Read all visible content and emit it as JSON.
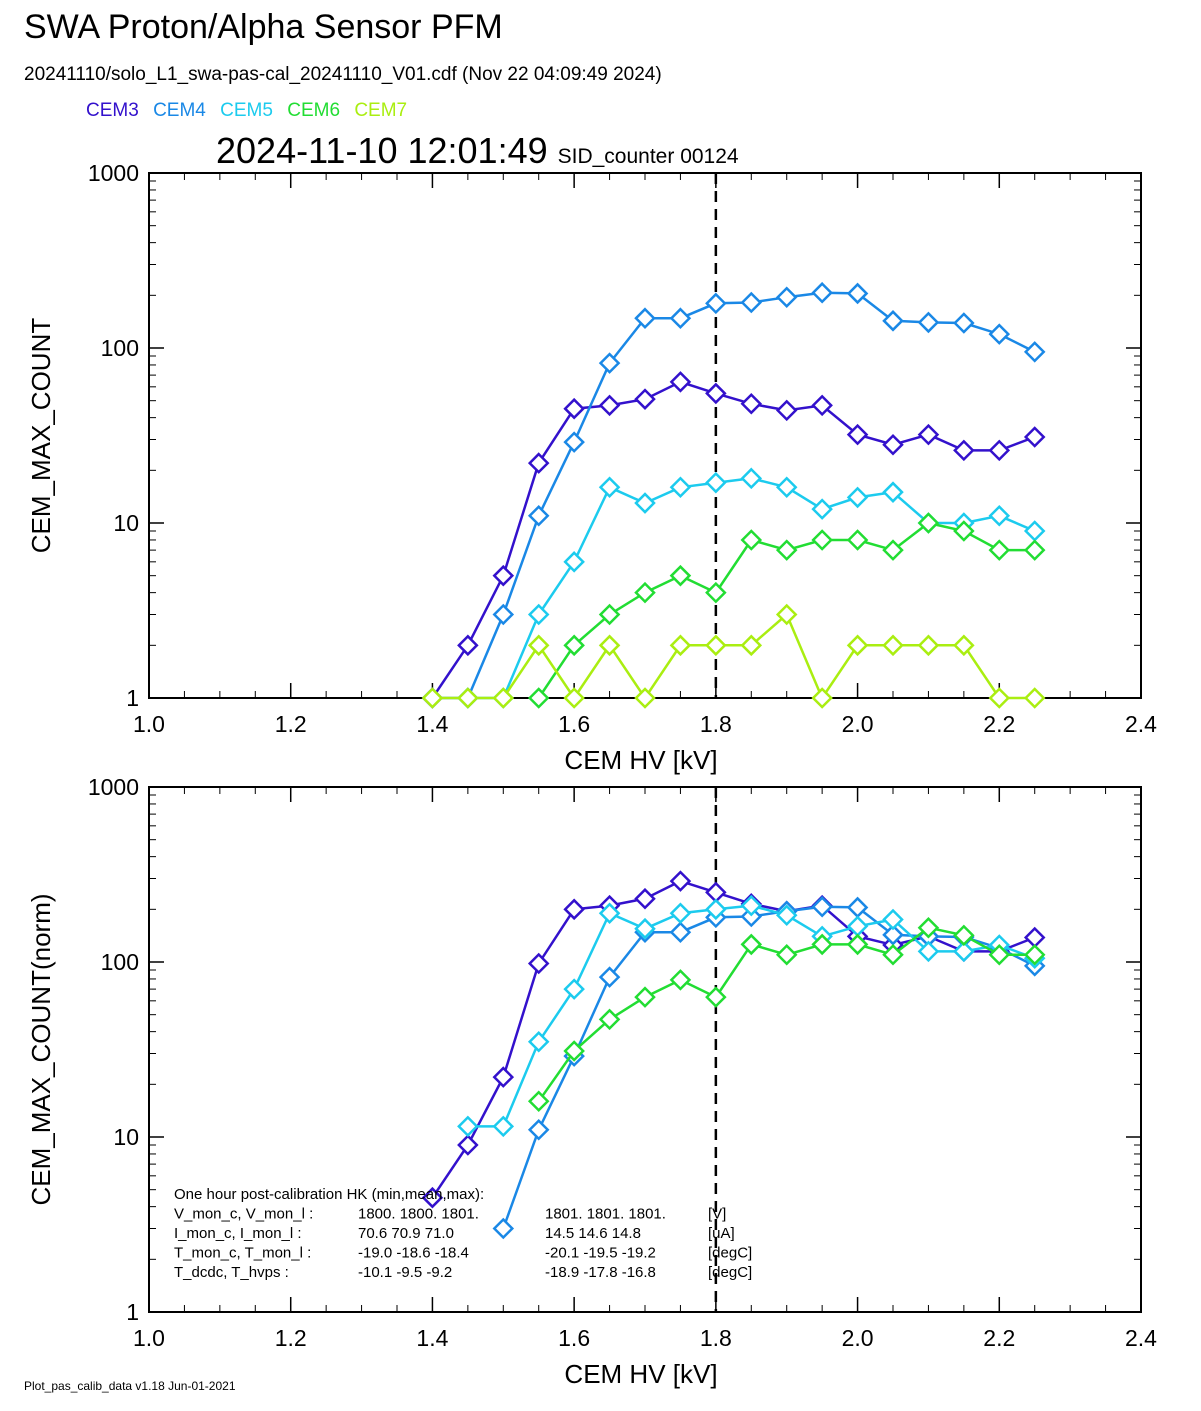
{
  "header": {
    "title": "SWA Proton/Alpha Sensor PFM",
    "file_line": "20241110/solo_L1_swa-pas-cal_20241110_V01.cdf  (Nov 22 04:09:49 2024)",
    "timestamp": "2024-11-10 12:01:49",
    "sid_label": "SID_counter 00124"
  },
  "legend": [
    {
      "name": "CEM3",
      "color": "#3311cc"
    },
    {
      "name": "CEM4",
      "color": "#1a88e6"
    },
    {
      "name": "CEM5",
      "color": "#1ccbee"
    },
    {
      "name": "CEM6",
      "color": "#22dd33"
    },
    {
      "name": "CEM7",
      "color": "#aaee11"
    }
  ],
  "hk_box": {
    "title": "One hour post-calibration HK (min,mean,max):",
    "rows": [
      {
        "label": "V_mon_c, V_mon_l :",
        "c": "1800.  1800.  1801.",
        "l": "1801.  1801.  1801.",
        "unit": "[V]"
      },
      {
        "label": "I_mon_c,  I_mon_l :",
        "c": "70.6   70.9   71.0",
        "l": "14.5   14.6   14.8",
        "unit": "[uA]"
      },
      {
        "label": "T_mon_c, T_mon_l :",
        "c": "-19.0  -18.6  -18.4",
        "l": "-20.1  -19.5  -19.2",
        "unit": "[degC]"
      },
      {
        "label": "T_dcdc,    T_hvps :",
        "c": "-10.1   -9.5   -9.2",
        "l": "-18.9  -17.8  -16.8",
        "unit": "[degC]"
      }
    ]
  },
  "footer": "Plot_pas_calib_data v1.18 Jun-01-2021",
  "chart_data": [
    {
      "type": "line",
      "xlabel": "CEM HV [kV]",
      "ylabel": "CEM_MAX_COUNT",
      "xlim": [
        1.0,
        2.4
      ],
      "ylim": [
        1,
        1000
      ],
      "yscale": "log",
      "xticks": [
        "1.0",
        "1.2",
        "1.4",
        "1.6",
        "1.8",
        "2.0",
        "2.2",
        "2.4"
      ],
      "yticks": [
        "1",
        "10",
        "100",
        "1000"
      ],
      "vline_x": 1.8,
      "series": [
        {
          "name": "CEM3",
          "color": "#3311cc",
          "x": [
            1.4,
            1.45,
            1.5,
            1.55,
            1.6,
            1.65,
            1.7,
            1.75,
            1.8,
            1.85,
            1.9,
            1.95,
            2.0,
            2.05,
            2.1,
            2.15,
            2.2,
            2.25
          ],
          "y": [
            1,
            2,
            5,
            22,
            45,
            47,
            51,
            64,
            55,
            48,
            44,
            47,
            32,
            28,
            32,
            26,
            26,
            31
          ]
        },
        {
          "name": "CEM4",
          "color": "#1a88e6",
          "x": [
            1.4,
            1.45,
            1.5,
            1.55,
            1.6,
            1.65,
            1.7,
            1.75,
            1.8,
            1.85,
            1.9,
            1.95,
            2.0,
            2.05,
            2.1,
            2.15,
            2.2,
            2.25
          ],
          "y": [
            1,
            1,
            3,
            11,
            29,
            82,
            148,
            148,
            180,
            182,
            195,
            207,
            205,
            143,
            140,
            139,
            120,
            95
          ]
        },
        {
          "name": "CEM5",
          "color": "#1ccbee",
          "x": [
            1.45,
            1.5,
            1.55,
            1.6,
            1.65,
            1.7,
            1.75,
            1.8,
            1.85,
            1.9,
            1.95,
            2.0,
            2.05,
            2.1,
            2.15,
            2.2,
            2.25
          ],
          "y": [
            1,
            1,
            3,
            6,
            16,
            13,
            16,
            17,
            18,
            16,
            12,
            14,
            15,
            10,
            10,
            11,
            9
          ]
        },
        {
          "name": "CEM6",
          "color": "#22dd33",
          "x": [
            1.55,
            1.6,
            1.65,
            1.7,
            1.75,
            1.8,
            1.85,
            1.9,
            1.95,
            2.0,
            2.05,
            2.1,
            2.15,
            2.2,
            2.25
          ],
          "y": [
            1,
            2,
            3,
            4,
            5,
            4,
            8,
            7,
            8,
            8,
            7,
            10,
            9,
            7,
            7
          ]
        },
        {
          "name": "CEM7",
          "color": "#aaee11",
          "x": [
            1.4,
            1.45,
            1.5,
            1.55,
            1.6,
            1.65,
            1.7,
            1.75,
            1.8,
            1.85,
            1.9,
            1.95,
            2.0,
            2.05,
            2.1,
            2.15,
            2.2,
            2.25
          ],
          "y": [
            1,
            1,
            1,
            2,
            1,
            2,
            1,
            2,
            2,
            2,
            3,
            1,
            2,
            2,
            2,
            2,
            1,
            1
          ]
        }
      ]
    },
    {
      "type": "line",
      "xlabel": "CEM HV [kV]",
      "ylabel": "CEM_MAX_COUNT(norm)",
      "xlim": [
        1.0,
        2.4
      ],
      "ylim": [
        1,
        1000
      ],
      "yscale": "log",
      "xticks": [
        "1.0",
        "1.2",
        "1.4",
        "1.6",
        "1.8",
        "2.0",
        "2.2",
        "2.4"
      ],
      "yticks": [
        "1",
        "10",
        "100",
        "1000"
      ],
      "vline_x": 1.8,
      "series": [
        {
          "name": "CEM3",
          "color": "#3311cc",
          "x": [
            1.4,
            1.45,
            1.5,
            1.55,
            1.6,
            1.65,
            1.7,
            1.75,
            1.8,
            1.85,
            1.9,
            1.95,
            2.0,
            2.05,
            2.1,
            2.15,
            2.2,
            2.25
          ],
          "y": [
            4.5,
            9,
            22,
            98,
            200,
            210,
            230,
            290,
            250,
            215,
            195,
            210,
            140,
            125,
            140,
            115,
            115,
            138
          ]
        },
        {
          "name": "CEM4",
          "color": "#1a88e6",
          "x": [
            1.5,
            1.55,
            1.6,
            1.65,
            1.7,
            1.75,
            1.8,
            1.85,
            1.9,
            1.95,
            2.0,
            2.05,
            2.1,
            2.15,
            2.2,
            2.25
          ],
          "y": [
            3,
            11,
            29,
            82,
            148,
            148,
            180,
            182,
            195,
            207,
            205,
            143,
            140,
            139,
            120,
            95
          ]
        },
        {
          "name": "CEM5",
          "color": "#1ccbee",
          "x": [
            1.45,
            1.5,
            1.55,
            1.6,
            1.65,
            1.7,
            1.75,
            1.8,
            1.85,
            1.9,
            1.95,
            2.0,
            2.05,
            2.1,
            2.15,
            2.2,
            2.25
          ],
          "y": [
            11.5,
            11.5,
            35,
            70,
            190,
            155,
            190,
            200,
            210,
            185,
            140,
            160,
            175,
            115,
            115,
            125,
            105
          ]
        },
        {
          "name": "CEM6",
          "color": "#22dd33",
          "x": [
            1.55,
            1.6,
            1.65,
            1.7,
            1.75,
            1.8,
            1.85,
            1.9,
            1.95,
            2.0,
            2.05,
            2.1,
            2.15,
            2.2,
            2.25
          ],
          "y": [
            16,
            31,
            47,
            63,
            79,
            63,
            126,
            110,
            126,
            126,
            110,
            157,
            142,
            110,
            110
          ]
        }
      ]
    }
  ]
}
